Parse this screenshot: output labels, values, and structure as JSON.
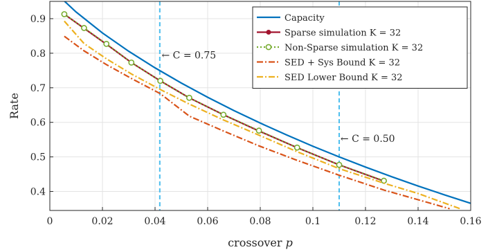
{
  "chart_data": {
    "type": "line",
    "xlabel": "crossover p",
    "ylabel": "Rate",
    "xlim": [
      0,
      0.16
    ],
    "ylim": [
      0.345,
      0.95
    ],
    "xticks": [
      "0",
      "0.02",
      "0.04",
      "0.06",
      "0.08",
      "0.1",
      "0.12",
      "0.14",
      "0.16"
    ],
    "yticks": [
      "0.4",
      "0.5",
      "0.6",
      "0.7",
      "0.8",
      "0.9"
    ],
    "grid": true,
    "legend_position": "top-right",
    "series": [
      {
        "name": "Capacity",
        "color": "#0072BD",
        "style": "solid",
        "marker": "none",
        "x": [
          0,
          0.005,
          0.01,
          0.02,
          0.03,
          0.04,
          0.05,
          0.06,
          0.07,
          0.08,
          0.09,
          0.1,
          0.11,
          0.12,
          0.13,
          0.14,
          0.15,
          0.16
        ],
        "y": [
          1.0,
          0.9546,
          0.9192,
          0.8586,
          0.8056,
          0.7577,
          0.7136,
          0.6726,
          0.634,
          0.5978,
          0.5636,
          0.531,
          0.5001,
          0.4706,
          0.4426,
          0.4158,
          0.3902,
          0.3657
        ]
      },
      {
        "name": "Sparse simulation K = 32",
        "color": "#A2142F",
        "style": "solid",
        "marker": "filled-circle",
        "x": [
          0.0055,
          0.013,
          0.0215,
          0.031,
          0.042,
          0.053,
          0.066,
          0.0795,
          0.094,
          0.11,
          0.127
        ],
        "y": [
          0.913,
          0.872,
          0.826,
          0.773,
          0.72,
          0.671,
          0.622,
          0.575,
          0.527,
          0.477,
          0.43
        ]
      },
      {
        "name": "Non-Sparse simulation K = 32",
        "color": "#77AC30",
        "style": "dotted",
        "marker": "open-circle",
        "x": [
          0.0055,
          0.013,
          0.0215,
          0.031,
          0.042,
          0.053,
          0.066,
          0.0795,
          0.094,
          0.11,
          0.127
        ],
        "y": [
          0.913,
          0.873,
          0.827,
          0.773,
          0.72,
          0.671,
          0.622,
          0.576,
          0.527,
          0.477,
          0.431
        ]
      },
      {
        "name": "SED + Sys Bound K = 32",
        "color": "#D95319",
        "style": "dashdot",
        "marker": "none",
        "x": [
          0.0055,
          0.013,
          0.0215,
          0.031,
          0.042,
          0.053,
          0.066,
          0.0795,
          0.094,
          0.11,
          0.127,
          0.14,
          0.152
        ],
        "y": [
          0.849,
          0.807,
          0.767,
          0.727,
          0.683,
          0.618,
          0.575,
          0.532,
          0.49,
          0.447,
          0.404,
          0.376,
          0.35
        ]
      },
      {
        "name": "SED Lower Bound K = 32",
        "color": "#EDB120",
        "style": "dashdot",
        "marker": "none",
        "x": [
          0.0055,
          0.013,
          0.0215,
          0.031,
          0.042,
          0.053,
          0.066,
          0.0795,
          0.094,
          0.11,
          0.127,
          0.14,
          0.156
        ],
        "y": [
          0.893,
          0.828,
          0.784,
          0.74,
          0.695,
          0.653,
          0.607,
          0.563,
          0.515,
          0.466,
          0.424,
          0.394,
          0.35
        ]
      }
    ],
    "vlines": [
      {
        "x": 0.0418,
        "color": "#4DBEEE",
        "style": "dashed"
      },
      {
        "x": 0.11,
        "color": "#4DBEEE",
        "style": "dashed"
      }
    ],
    "annotations": [
      {
        "text": "← C = 0.75",
        "x": 0.0425,
        "y": 0.785
      },
      {
        "text": "← C = 0.50",
        "x": 0.1105,
        "y": 0.543
      }
    ]
  }
}
